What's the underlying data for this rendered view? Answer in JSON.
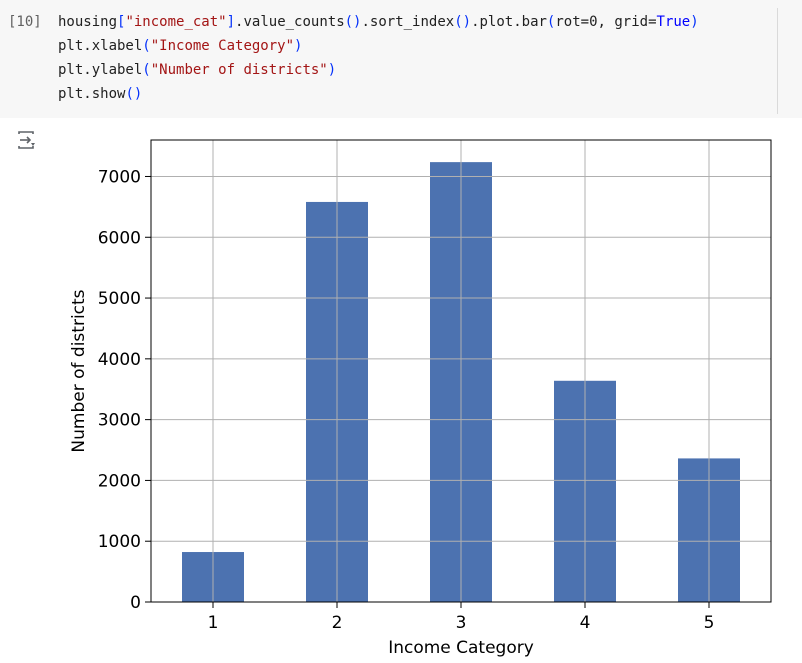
{
  "cell": {
    "execution_count": "[10]",
    "code_lines": [
      [
        {
          "t": "housing",
          "c": "plain"
        },
        {
          "t": "[",
          "c": "paren"
        },
        {
          "t": "\"income_cat\"",
          "c": "str"
        },
        {
          "t": "]",
          "c": "paren"
        },
        {
          "t": ".value_counts",
          "c": "plain"
        },
        {
          "t": "()",
          "c": "paren"
        },
        {
          "t": ".sort_index",
          "c": "plain"
        },
        {
          "t": "()",
          "c": "paren"
        },
        {
          "t": ".plot.bar",
          "c": "plain"
        },
        {
          "t": "(",
          "c": "paren"
        },
        {
          "t": "rot=0, grid=",
          "c": "plain"
        },
        {
          "t": "True",
          "c": "kw"
        },
        {
          "t": ")",
          "c": "paren"
        }
      ],
      [
        {
          "t": "plt.xlabel",
          "c": "plain"
        },
        {
          "t": "(",
          "c": "paren"
        },
        {
          "t": "\"Income Category\"",
          "c": "str"
        },
        {
          "t": ")",
          "c": "paren"
        }
      ],
      [
        {
          "t": "plt.ylabel",
          "c": "plain"
        },
        {
          "t": "(",
          "c": "paren"
        },
        {
          "t": "\"Number of districts\"",
          "c": "str"
        },
        {
          "t": ")",
          "c": "paren"
        }
      ],
      [
        {
          "t": "plt.show",
          "c": "plain"
        },
        {
          "t": "()",
          "c": "paren"
        }
      ]
    ]
  },
  "output": {
    "toggle_icon": "output-toggle-icon"
  },
  "colors": {
    "bar": "#4c72b0",
    "grid": "#b0b0b0",
    "axes": "#000000",
    "cell_background": "#f7f7f7"
  },
  "chart_data": {
    "type": "bar",
    "categories": [
      "1",
      "2",
      "3",
      "4",
      "5"
    ],
    "values": [
      822,
      6581,
      7236,
      3639,
      2362
    ],
    "title": "",
    "xlabel": "Income Category",
    "ylabel": "Number of districts",
    "ylim": [
      0,
      7600
    ],
    "yticks": [
      0,
      1000,
      2000,
      3000,
      4000,
      5000,
      6000,
      7000
    ],
    "ytick_labels": [
      "0",
      "1000",
      "2000",
      "3000",
      "4000",
      "5000",
      "6000",
      "7000"
    ],
    "grid": true,
    "legend": "none"
  }
}
